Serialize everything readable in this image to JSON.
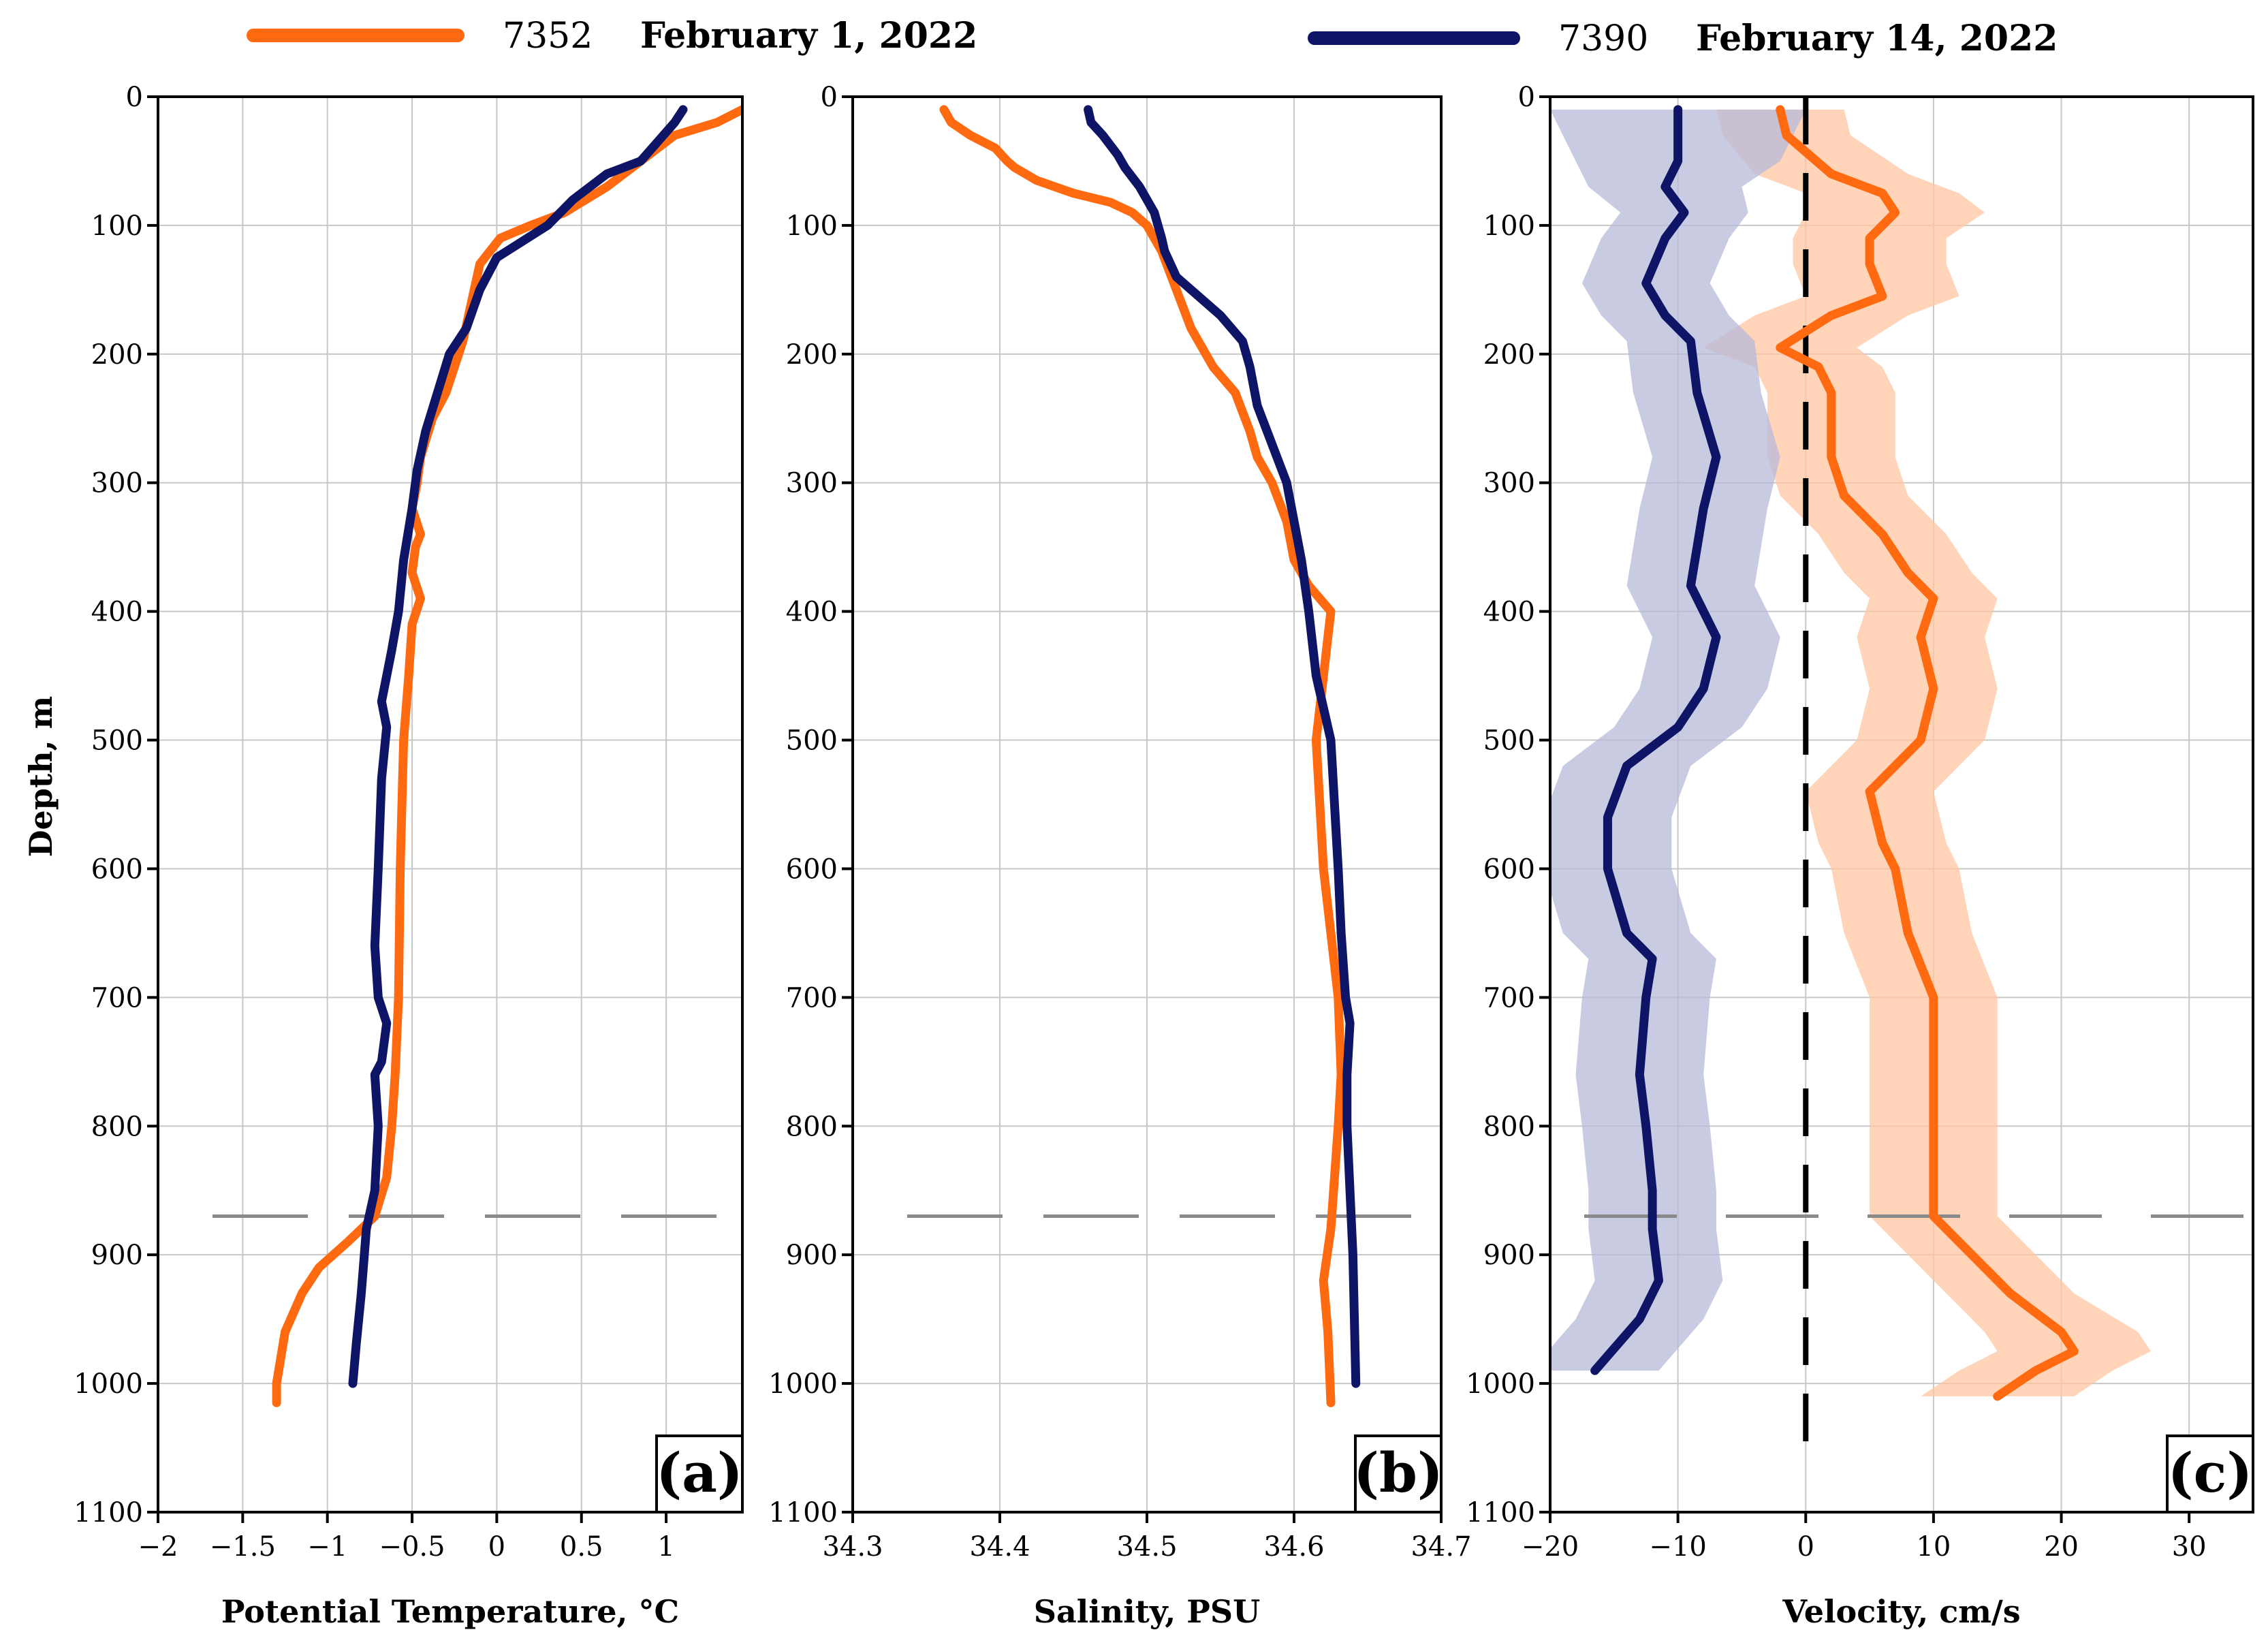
{
  "legend": [
    {
      "id": "7352",
      "label": "February 1, 2022",
      "color": "#FF6A10"
    },
    {
      "id": "7390",
      "label": "February 14, 2022",
      "color": "#0E1466"
    }
  ],
  "y_axis_title": "Depth, m",
  "chart_data": [
    {
      "type": "line",
      "panel_tag": "(a)",
      "xlabel": "Potential Temperature, °C",
      "ylabel": "Depth, m",
      "xlim": [
        -2,
        1.45
      ],
      "ylim": [
        1100,
        0
      ],
      "xticks": [
        -2,
        -1.5,
        -1,
        -0.5,
        0,
        0.5,
        1
      ],
      "xtick_labels": [
        "−2",
        "−1.5",
        "−1",
        "−0.5",
        "0",
        "0.5",
        "1"
      ],
      "yticks": [
        0,
        100,
        200,
        300,
        400,
        500,
        600,
        700,
        800,
        900,
        1000,
        1100
      ],
      "ytick_labels": [
        "0",
        "100",
        "200",
        "300",
        "400",
        "500",
        "600",
        "700",
        "800",
        "900",
        "1000",
        "1100"
      ],
      "grid": true,
      "reference_depth": 870,
      "series": [
        {
          "name": "7352",
          "color": "#FF6A10",
          "x": [
            1.45,
            1.3,
            1.05,
            0.85,
            0.65,
            0.4,
            0.2,
            0.02,
            -0.1,
            -0.15,
            -0.2,
            -0.25,
            -0.3,
            -0.38,
            -0.45,
            -0.47,
            -0.5,
            -0.45,
            -0.48,
            -0.5,
            -0.45,
            -0.5,
            -0.52,
            -0.55,
            -0.57,
            -0.58,
            -0.6,
            -0.62,
            -0.65,
            -0.72,
            -0.88,
            -1.05,
            -1.15,
            -1.25,
            -1.3,
            -1.3
          ],
          "y": [
            10,
            20,
            30,
            50,
            70,
            90,
            100,
            110,
            130,
            160,
            190,
            210,
            230,
            250,
            280,
            300,
            320,
            340,
            350,
            370,
            390,
            410,
            450,
            500,
            600,
            700,
            760,
            800,
            840,
            870,
            890,
            910,
            930,
            960,
            1000,
            1015
          ]
        },
        {
          "name": "7390",
          "color": "#0E1466",
          "x": [
            1.1,
            1.05,
            0.95,
            0.85,
            0.65,
            0.45,
            0.3,
            0.12,
            0.0,
            -0.1,
            -0.18,
            -0.28,
            -0.35,
            -0.42,
            -0.47,
            -0.5,
            -0.55,
            -0.58,
            -0.62,
            -0.65,
            -0.68,
            -0.65,
            -0.68,
            -0.7,
            -0.72,
            -0.7,
            -0.65,
            -0.68,
            -0.72,
            -0.7,
            -0.72,
            -0.77,
            -0.8,
            -0.83,
            -0.85
          ],
          "y": [
            10,
            20,
            35,
            50,
            60,
            80,
            100,
            115,
            125,
            150,
            180,
            200,
            230,
            260,
            290,
            320,
            360,
            400,
            430,
            450,
            470,
            490,
            530,
            600,
            660,
            700,
            720,
            750,
            760,
            800,
            850,
            880,
            930,
            970,
            1000
          ]
        }
      ]
    },
    {
      "type": "line",
      "panel_tag": "(b)",
      "xlabel": "Salinity, PSU",
      "ylabel": "",
      "xlim": [
        34.3,
        34.7
      ],
      "ylim": [
        1100,
        0
      ],
      "xticks": [
        34.3,
        34.4,
        34.5,
        34.6,
        34.7
      ],
      "xtick_labels": [
        "34.3",
        "34.4",
        "34.5",
        "34.6",
        "34.7"
      ],
      "yticks": [
        0,
        100,
        200,
        300,
        400,
        500,
        600,
        700,
        800,
        900,
        1000,
        1100
      ],
      "ytick_labels": [
        "0",
        "100",
        "200",
        "300",
        "400",
        "500",
        "600",
        "700",
        "800",
        "900",
        "1000",
        "1100"
      ],
      "grid": true,
      "reference_depth": 870,
      "series": [
        {
          "name": "7352",
          "color": "#FF6A10",
          "x": [
            34.362,
            34.367,
            34.38,
            34.397,
            34.405,
            34.41,
            34.425,
            34.45,
            34.475,
            34.49,
            34.5,
            34.51,
            34.52,
            34.53,
            34.545,
            34.56,
            34.57,
            34.575,
            34.585,
            34.595,
            34.6,
            34.61,
            34.625,
            34.62,
            34.615,
            34.62,
            34.63,
            34.632,
            34.63,
            34.625,
            34.62,
            34.623,
            34.625
          ],
          "y": [
            10,
            20,
            30,
            40,
            50,
            55,
            65,
            75,
            82,
            90,
            100,
            120,
            150,
            180,
            210,
            230,
            260,
            280,
            300,
            330,
            360,
            380,
            400,
            450,
            500,
            600,
            700,
            760,
            800,
            880,
            920,
            960,
            1015
          ]
        },
        {
          "name": "7390",
          "color": "#0E1466",
          "x": [
            34.46,
            34.462,
            34.47,
            34.48,
            34.485,
            34.495,
            34.505,
            34.51,
            34.512,
            34.52,
            34.53,
            34.55,
            34.565,
            34.57,
            34.575,
            34.585,
            34.595,
            34.6,
            34.605,
            34.61,
            34.615,
            34.625,
            34.63,
            34.632,
            34.635,
            34.638,
            34.636,
            34.636,
            34.64,
            34.642
          ],
          "y": [
            10,
            20,
            30,
            45,
            55,
            70,
            90,
            110,
            120,
            140,
            150,
            170,
            190,
            210,
            240,
            270,
            300,
            330,
            360,
            400,
            450,
            500,
            600,
            650,
            700,
            720,
            760,
            800,
            900,
            1000
          ]
        }
      ]
    },
    {
      "type": "line",
      "panel_tag": "(c)",
      "xlabel": "Velocity, cm/s",
      "ylabel": "",
      "xlim": [
        -20,
        35
      ],
      "ylim": [
        1100,
        0
      ],
      "xticks": [
        -20,
        -10,
        0,
        10,
        20,
        30
      ],
      "xtick_labels": [
        "−20",
        "−10",
        "0",
        "10",
        "20",
        "30"
      ],
      "yticks": [
        0,
        100,
        200,
        300,
        400,
        500,
        600,
        700,
        800,
        900,
        1000,
        1100
      ],
      "ytick_labels": [
        "0",
        "100",
        "200",
        "300",
        "400",
        "500",
        "600",
        "700",
        "800",
        "900",
        "1000",
        "1100"
      ],
      "grid": true,
      "reference_depth": 870,
      "zero_line": 0,
      "series": [
        {
          "name": "7352",
          "color": "#FF6A10",
          "band_color": "#FFC6A2",
          "y": [
            10,
            30,
            60,
            75,
            90,
            110,
            130,
            155,
            170,
            195,
            210,
            230,
            280,
            310,
            340,
            370,
            390,
            420,
            460,
            500,
            540,
            580,
            600,
            650,
            700,
            760,
            800,
            850,
            870,
            900,
            930,
            960,
            975,
            990,
            1010
          ],
          "x": [
            -2,
            -1.5,
            2,
            6,
            7,
            5,
            5,
            6,
            2,
            -2,
            1,
            2,
            2,
            3,
            6,
            8,
            10,
            9,
            10,
            9,
            5,
            6,
            7,
            8,
            10,
            10,
            10,
            10,
            10,
            13,
            16,
            20,
            21,
            18,
            15
          ],
          "band_halfwidth": [
            5,
            5,
            6,
            6,
            7,
            6,
            6,
            6,
            6,
            6,
            5,
            5,
            5,
            5,
            5,
            5,
            5,
            5,
            5,
            5,
            5,
            5,
            5,
            5,
            5,
            5,
            5,
            5,
            5,
            5,
            5,
            6,
            6,
            6,
            6
          ]
        },
        {
          "name": "7390",
          "color": "#0E1466",
          "band_color": "#B7B9D9",
          "y": [
            10,
            50,
            70,
            90,
            110,
            145,
            170,
            190,
            230,
            280,
            320,
            380,
            420,
            460,
            490,
            520,
            560,
            600,
            650,
            670,
            700,
            760,
            800,
            850,
            880,
            920,
            950,
            990
          ],
          "x": [
            -10,
            -10,
            -11,
            -9.5,
            -11,
            -12.5,
            -11,
            -9,
            -8.5,
            -7,
            -8,
            -9,
            -7,
            -8,
            -10,
            -14,
            -15.5,
            -15.5,
            -14,
            -12,
            -12.5,
            -13,
            -12.5,
            -12,
            -12,
            -11.5,
            -13,
            -16.5
          ],
          "band_halfwidth": [
            10,
            8,
            6,
            5,
            5,
            5,
            5,
            5,
            5,
            5,
            5,
            5,
            5,
            5,
            5,
            5,
            5,
            5,
            5,
            5,
            5,
            5,
            5,
            5,
            5,
            5,
            5,
            5
          ]
        }
      ]
    }
  ]
}
